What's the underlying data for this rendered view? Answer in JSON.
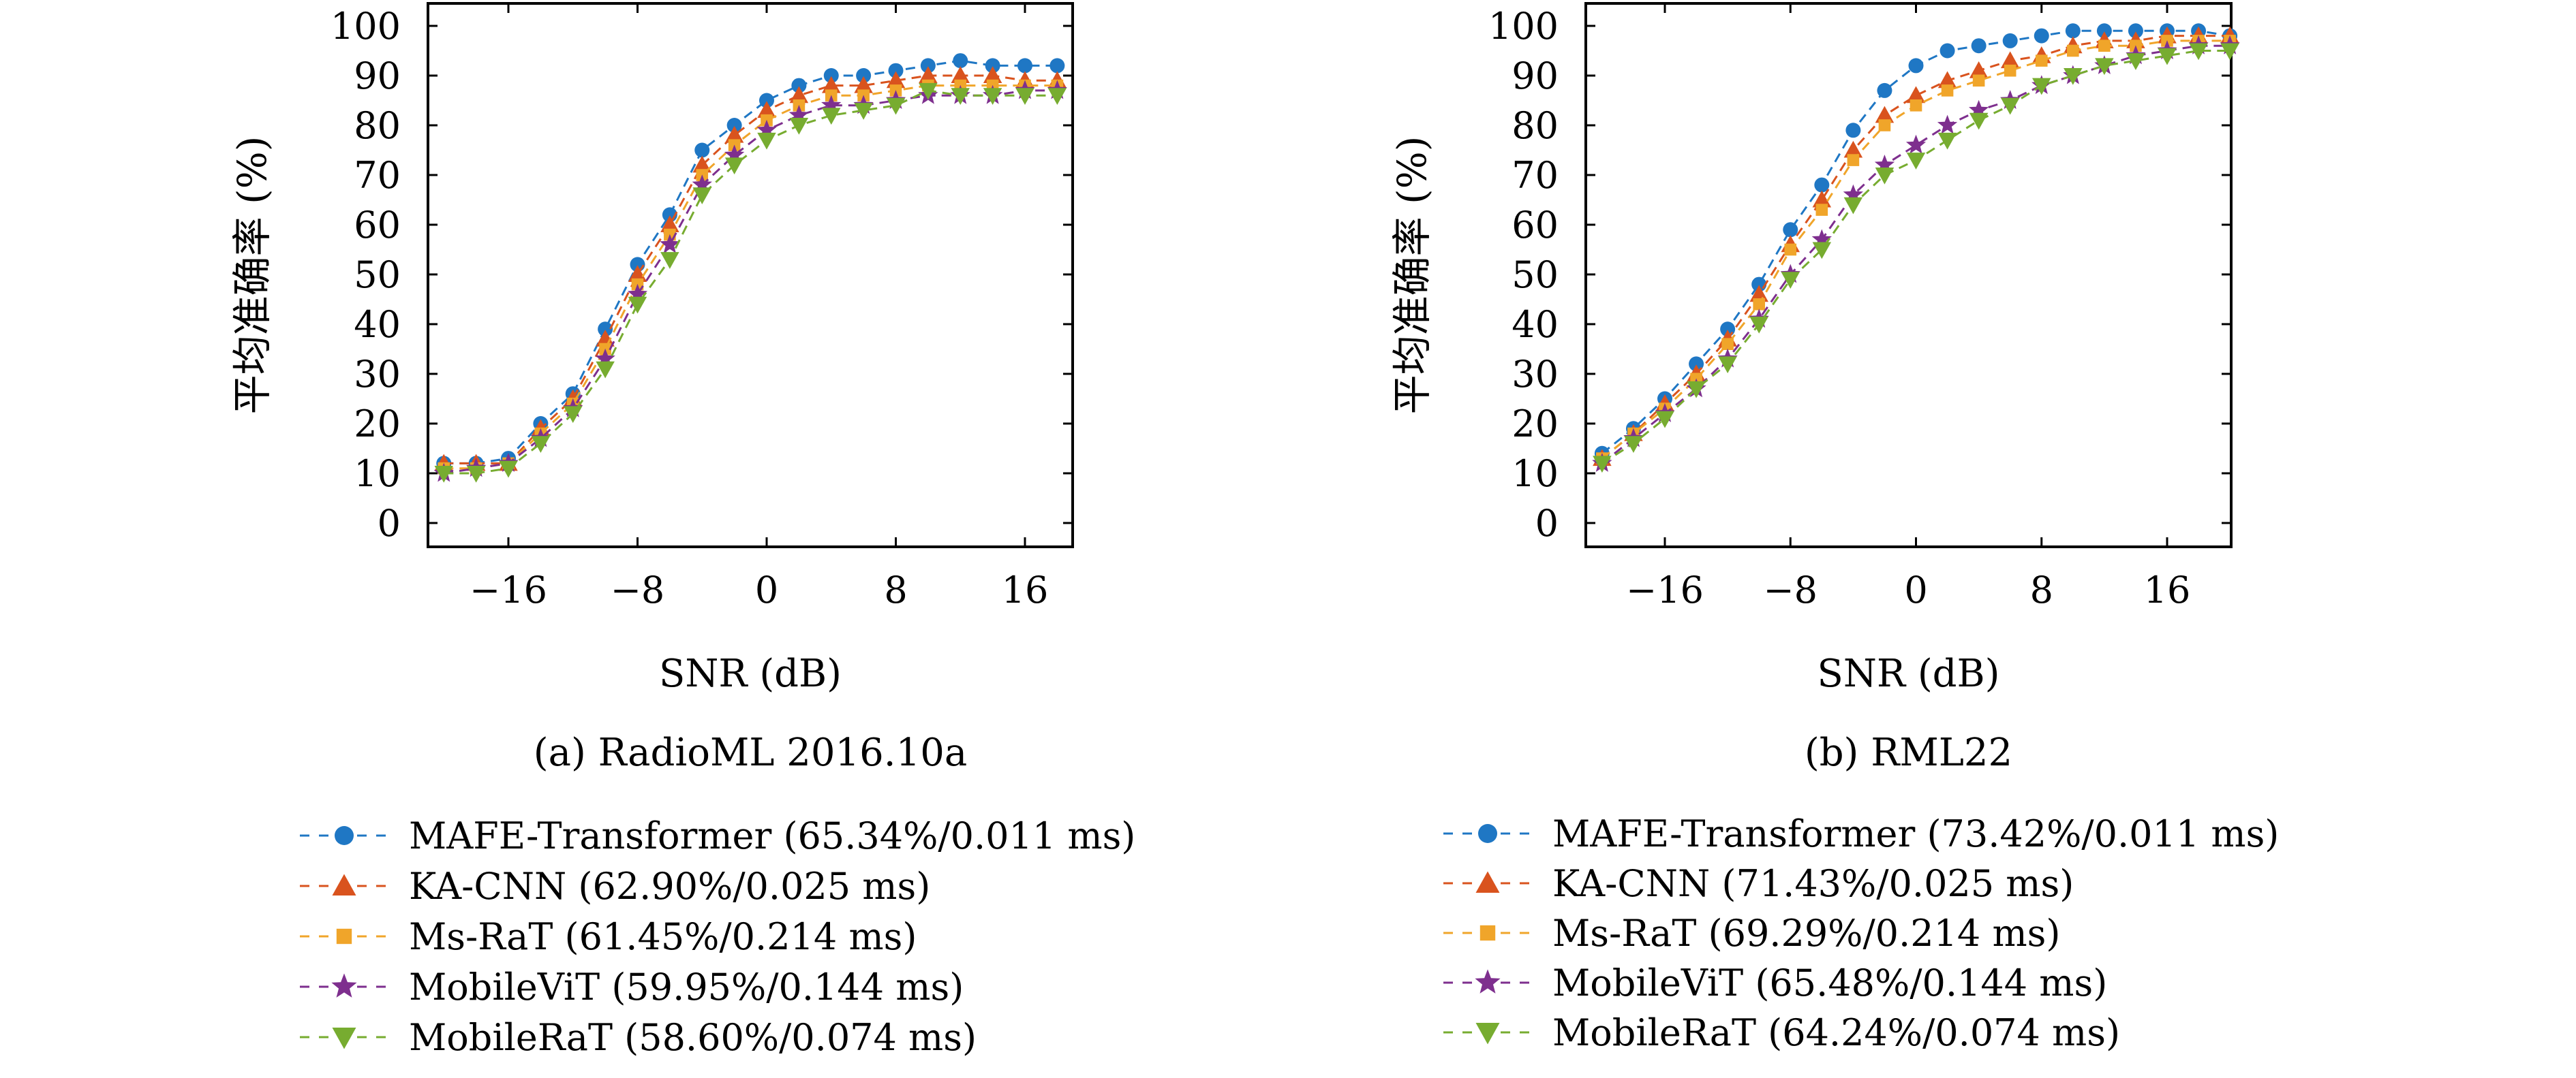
{
  "chart_data": [
    {
      "type": "line",
      "caption": "(a) RadioML 2016.10a",
      "xlabel": "SNR (dB)",
      "ylabel": "平均准确率 (%)",
      "xlim": [
        -20,
        18
      ],
      "ylim": [
        0,
        100
      ],
      "xticks": [
        -16,
        -8,
        0,
        8,
        16
      ],
      "xtick_labels": [
        "−16",
        "−8",
        "0",
        "8",
        "16"
      ],
      "yticks": [
        0,
        10,
        20,
        30,
        40,
        50,
        60,
        70,
        80,
        90,
        100
      ],
      "grid": false,
      "legend_position": "below",
      "x": [
        -20,
        -18,
        -16,
        -14,
        -12,
        -10,
        -8,
        -6,
        -4,
        -2,
        0,
        2,
        4,
        6,
        8,
        10,
        12,
        14,
        16,
        18
      ],
      "series": [
        {
          "name": "MAFE-Transformer (65.34%/0.011 ms)",
          "color": "#1f77c4",
          "marker": "circle",
          "values": [
            12,
            12,
            13,
            20,
            26,
            39,
            52,
            62,
            75,
            80,
            85,
            88,
            90,
            90,
            91,
            92,
            93,
            92,
            92,
            92
          ]
        },
        {
          "name": "KA-CNN (62.90%/0.025 ms)",
          "color": "#d9531e",
          "marker": "triangle-up",
          "values": [
            12,
            12,
            12,
            19,
            25,
            37,
            50,
            60,
            72,
            78,
            83,
            86,
            88,
            88,
            89,
            90,
            90,
            90,
            89,
            89
          ]
        },
        {
          "name": "Ms-RaT (61.45%/0.214 ms)",
          "color": "#f0a52a",
          "marker": "square",
          "values": [
            11,
            11,
            12,
            18,
            24,
            35,
            48,
            58,
            70,
            76,
            81,
            84,
            86,
            86,
            87,
            88,
            88,
            88,
            88,
            88
          ]
        },
        {
          "name": "MobileViT (59.95%/0.144 ms)",
          "color": "#7e2f8e",
          "marker": "star",
          "values": [
            10,
            11,
            12,
            17,
            23,
            33,
            46,
            56,
            68,
            74,
            79,
            82,
            84,
            84,
            85,
            86,
            86,
            86,
            87,
            87
          ]
        },
        {
          "name": "MobileRaT (58.60%/0.074 ms)",
          "color": "#77ac30",
          "marker": "triangle-down",
          "values": [
            10,
            10,
            11,
            16,
            22,
            31,
            44,
            53,
            66,
            72,
            77,
            80,
            82,
            83,
            84,
            87,
            86,
            86,
            86,
            86
          ]
        }
      ]
    },
    {
      "type": "line",
      "caption": "(b) RML22",
      "xlabel": "SNR (dB)",
      "ylabel": "平均准确率 (%)",
      "xlim": [
        -20,
        18
      ],
      "ylim": [
        0,
        100
      ],
      "xticks": [
        -16,
        -8,
        0,
        8,
        16
      ],
      "xtick_labels": [
        "−16",
        "−8",
        "0",
        "8",
        "16"
      ],
      "yticks": [
        0,
        10,
        20,
        30,
        40,
        50,
        60,
        70,
        80,
        90,
        100
      ],
      "grid": false,
      "legend_position": "below",
      "x": [
        -20,
        -18,
        -16,
        -14,
        -12,
        -10,
        -8,
        -6,
        -4,
        -2,
        0,
        2,
        4,
        6,
        8,
        10,
        12,
        14,
        16,
        18,
        20
      ],
      "series": [
        {
          "name": "MAFE-Transformer (73.42%/0.011 ms)",
          "color": "#1f77c4",
          "marker": "circle",
          "values": [
            14,
            19,
            25,
            32,
            39,
            48,
            59,
            68,
            79,
            87,
            92,
            95,
            96,
            97,
            98,
            99,
            99,
            99,
            99,
            99,
            98
          ]
        },
        {
          "name": "KA-CNN (71.43%/0.025 ms)",
          "color": "#d9531e",
          "marker": "triangle-up",
          "values": [
            13,
            18,
            24,
            30,
            37,
            46,
            56,
            65,
            75,
            82,
            86,
            89,
            91,
            93,
            94,
            96,
            97,
            97,
            98,
            98,
            98
          ]
        },
        {
          "name": "Ms-RaT (69.29%/0.214 ms)",
          "color": "#f0a52a",
          "marker": "square",
          "values": [
            13,
            18,
            23,
            29,
            36,
            44,
            55,
            63,
            73,
            80,
            84,
            87,
            89,
            91,
            93,
            95,
            96,
            96,
            97,
            97,
            97
          ]
        },
        {
          "name": "MobileViT (65.48%/0.144 ms)",
          "color": "#7e2f8e",
          "marker": "star",
          "values": [
            12,
            17,
            22,
            27,
            33,
            41,
            50,
            57,
            66,
            72,
            76,
            80,
            83,
            85,
            88,
            90,
            92,
            94,
            95,
            96,
            96
          ]
        },
        {
          "name": "MobileRaT (64.24%/0.074 ms)",
          "color": "#77ac30",
          "marker": "triangle-down",
          "values": [
            12,
            16,
            21,
            27,
            32,
            40,
            49,
            55,
            64,
            70,
            73,
            77,
            81,
            84,
            88,
            90,
            92,
            93,
            94,
            95,
            95
          ]
        }
      ]
    }
  ]
}
